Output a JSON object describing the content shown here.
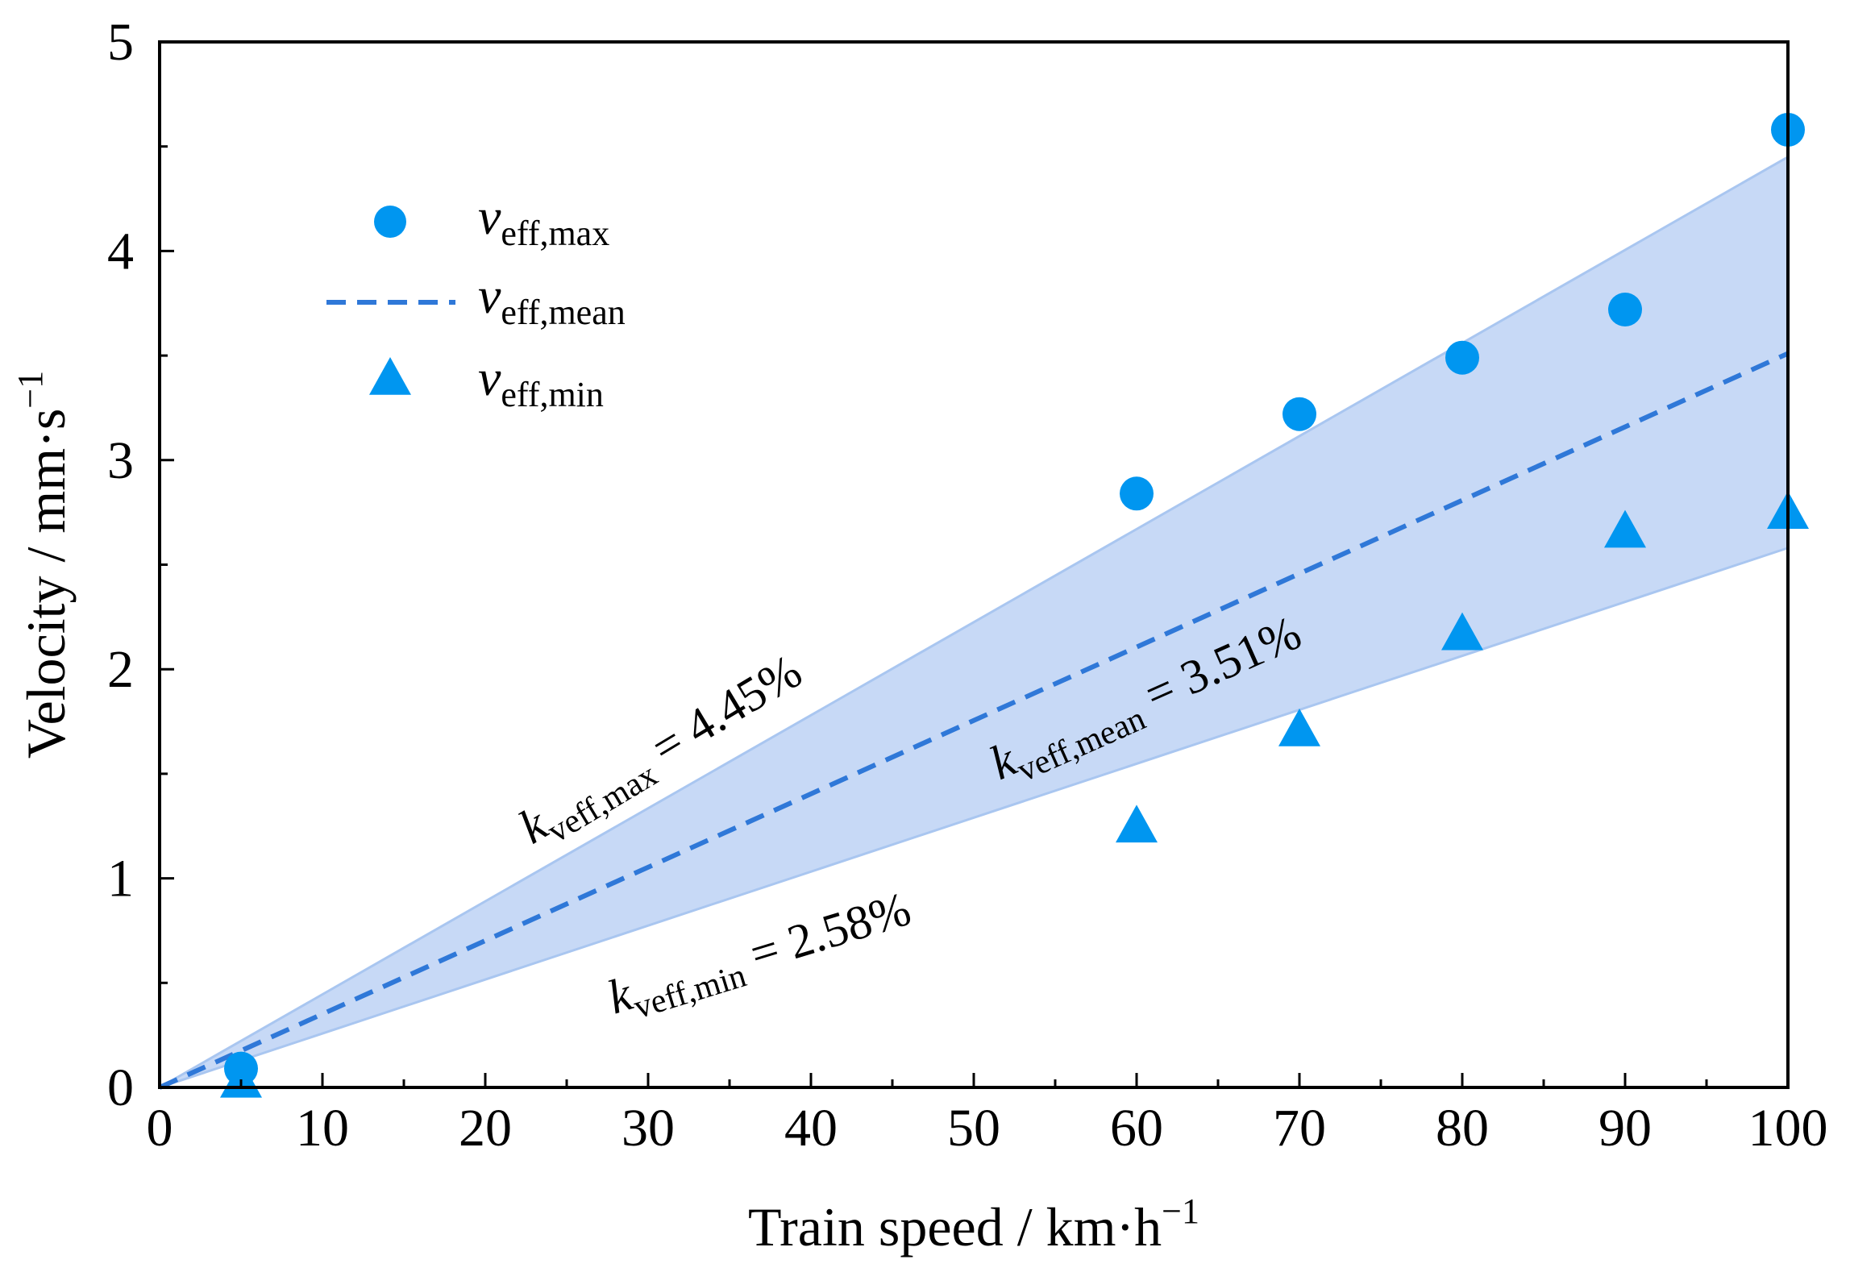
{
  "chart_data": {
    "type": "scatter",
    "title": "",
    "xlabel": "Train speed / km·h",
    "xlabel_sup": "−1",
    "ylabel": "Velocity / mm·s",
    "ylabel_sup": "−1",
    "xlim": [
      0,
      100
    ],
    "ylim": [
      0,
      5
    ],
    "x_ticks": [
      0,
      10,
      20,
      30,
      40,
      50,
      60,
      70,
      80,
      90,
      100
    ],
    "x_tick_labels": [
      "0",
      "10",
      "20",
      "30",
      "40",
      "50",
      "60",
      "70",
      "80",
      "90",
      "100"
    ],
    "y_ticks": [
      0,
      1,
      2,
      3,
      4,
      5
    ],
    "y_tick_labels": [
      "0",
      "1",
      "2",
      "3",
      "4",
      "5"
    ],
    "grid": false,
    "legend_position": "top-left",
    "colors": {
      "marker": "#0096f0",
      "mean_line": "#2f78d8",
      "band_fill": "#c7d9f6",
      "band_edge": "#a9c6f0"
    },
    "series": [
      {
        "name": "v",
        "subscript": "eff,max",
        "kind": "scatter",
        "marker": "circle",
        "points": [
          [
            5,
            0.09
          ],
          [
            60,
            2.84
          ],
          [
            70,
            3.22
          ],
          [
            80,
            3.49
          ],
          [
            90,
            3.72
          ],
          [
            100,
            4.58
          ]
        ]
      },
      {
        "name": "v",
        "subscript": "eff,mean",
        "kind": "line",
        "style": "dashed",
        "points": [
          [
            0,
            0
          ],
          [
            100,
            3.51
          ]
        ]
      },
      {
        "name": "v",
        "subscript": "eff,min",
        "kind": "scatter",
        "marker": "triangle",
        "points": [
          [
            5,
            0.02
          ],
          [
            60,
            1.24
          ],
          [
            70,
            1.7
          ],
          [
            80,
            2.16
          ],
          [
            90,
            2.65
          ],
          [
            100,
            2.74
          ]
        ]
      }
    ],
    "band": {
      "lower": [
        [
          0,
          0
        ],
        [
          100,
          2.58
        ]
      ],
      "upper": [
        [
          0,
          0
        ],
        [
          100,
          4.45
        ]
      ]
    },
    "annotations": [
      {
        "k": "k",
        "subscript": "veff,max",
        "text": " = 4.45%"
      },
      {
        "k": "k",
        "subscript": "veff,mean",
        "text": " = 3.51%"
      },
      {
        "k": "k",
        "subscript": "veff,min",
        "text": " = 2.58%"
      }
    ]
  }
}
